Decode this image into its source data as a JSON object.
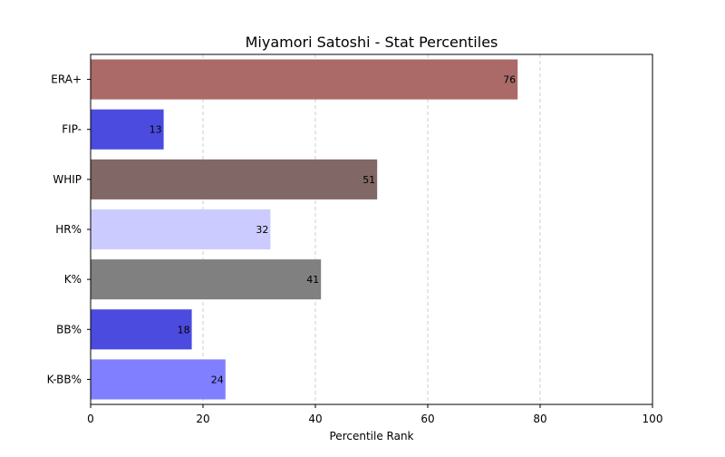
{
  "chart_data": {
    "type": "bar",
    "orientation": "horizontal",
    "title": "Miyamori Satoshi - Stat Percentiles",
    "xlabel": "Percentile Rank",
    "ylabel": "",
    "xlim": [
      0,
      100
    ],
    "xticks": [
      0,
      20,
      40,
      60,
      80,
      100
    ],
    "grid": "x-dashed",
    "categories": [
      "ERA+",
      "FIP-",
      "WHIP",
      "HR%",
      "K%",
      "BB%",
      "K-BB%"
    ],
    "values": [
      76,
      13,
      51,
      32,
      41,
      18,
      24
    ],
    "colors": [
      "#ab6a68",
      "#4b4bdf",
      "#826767",
      "#cccbff",
      "#808080",
      "#4b4bdf",
      "#807fff"
    ]
  }
}
